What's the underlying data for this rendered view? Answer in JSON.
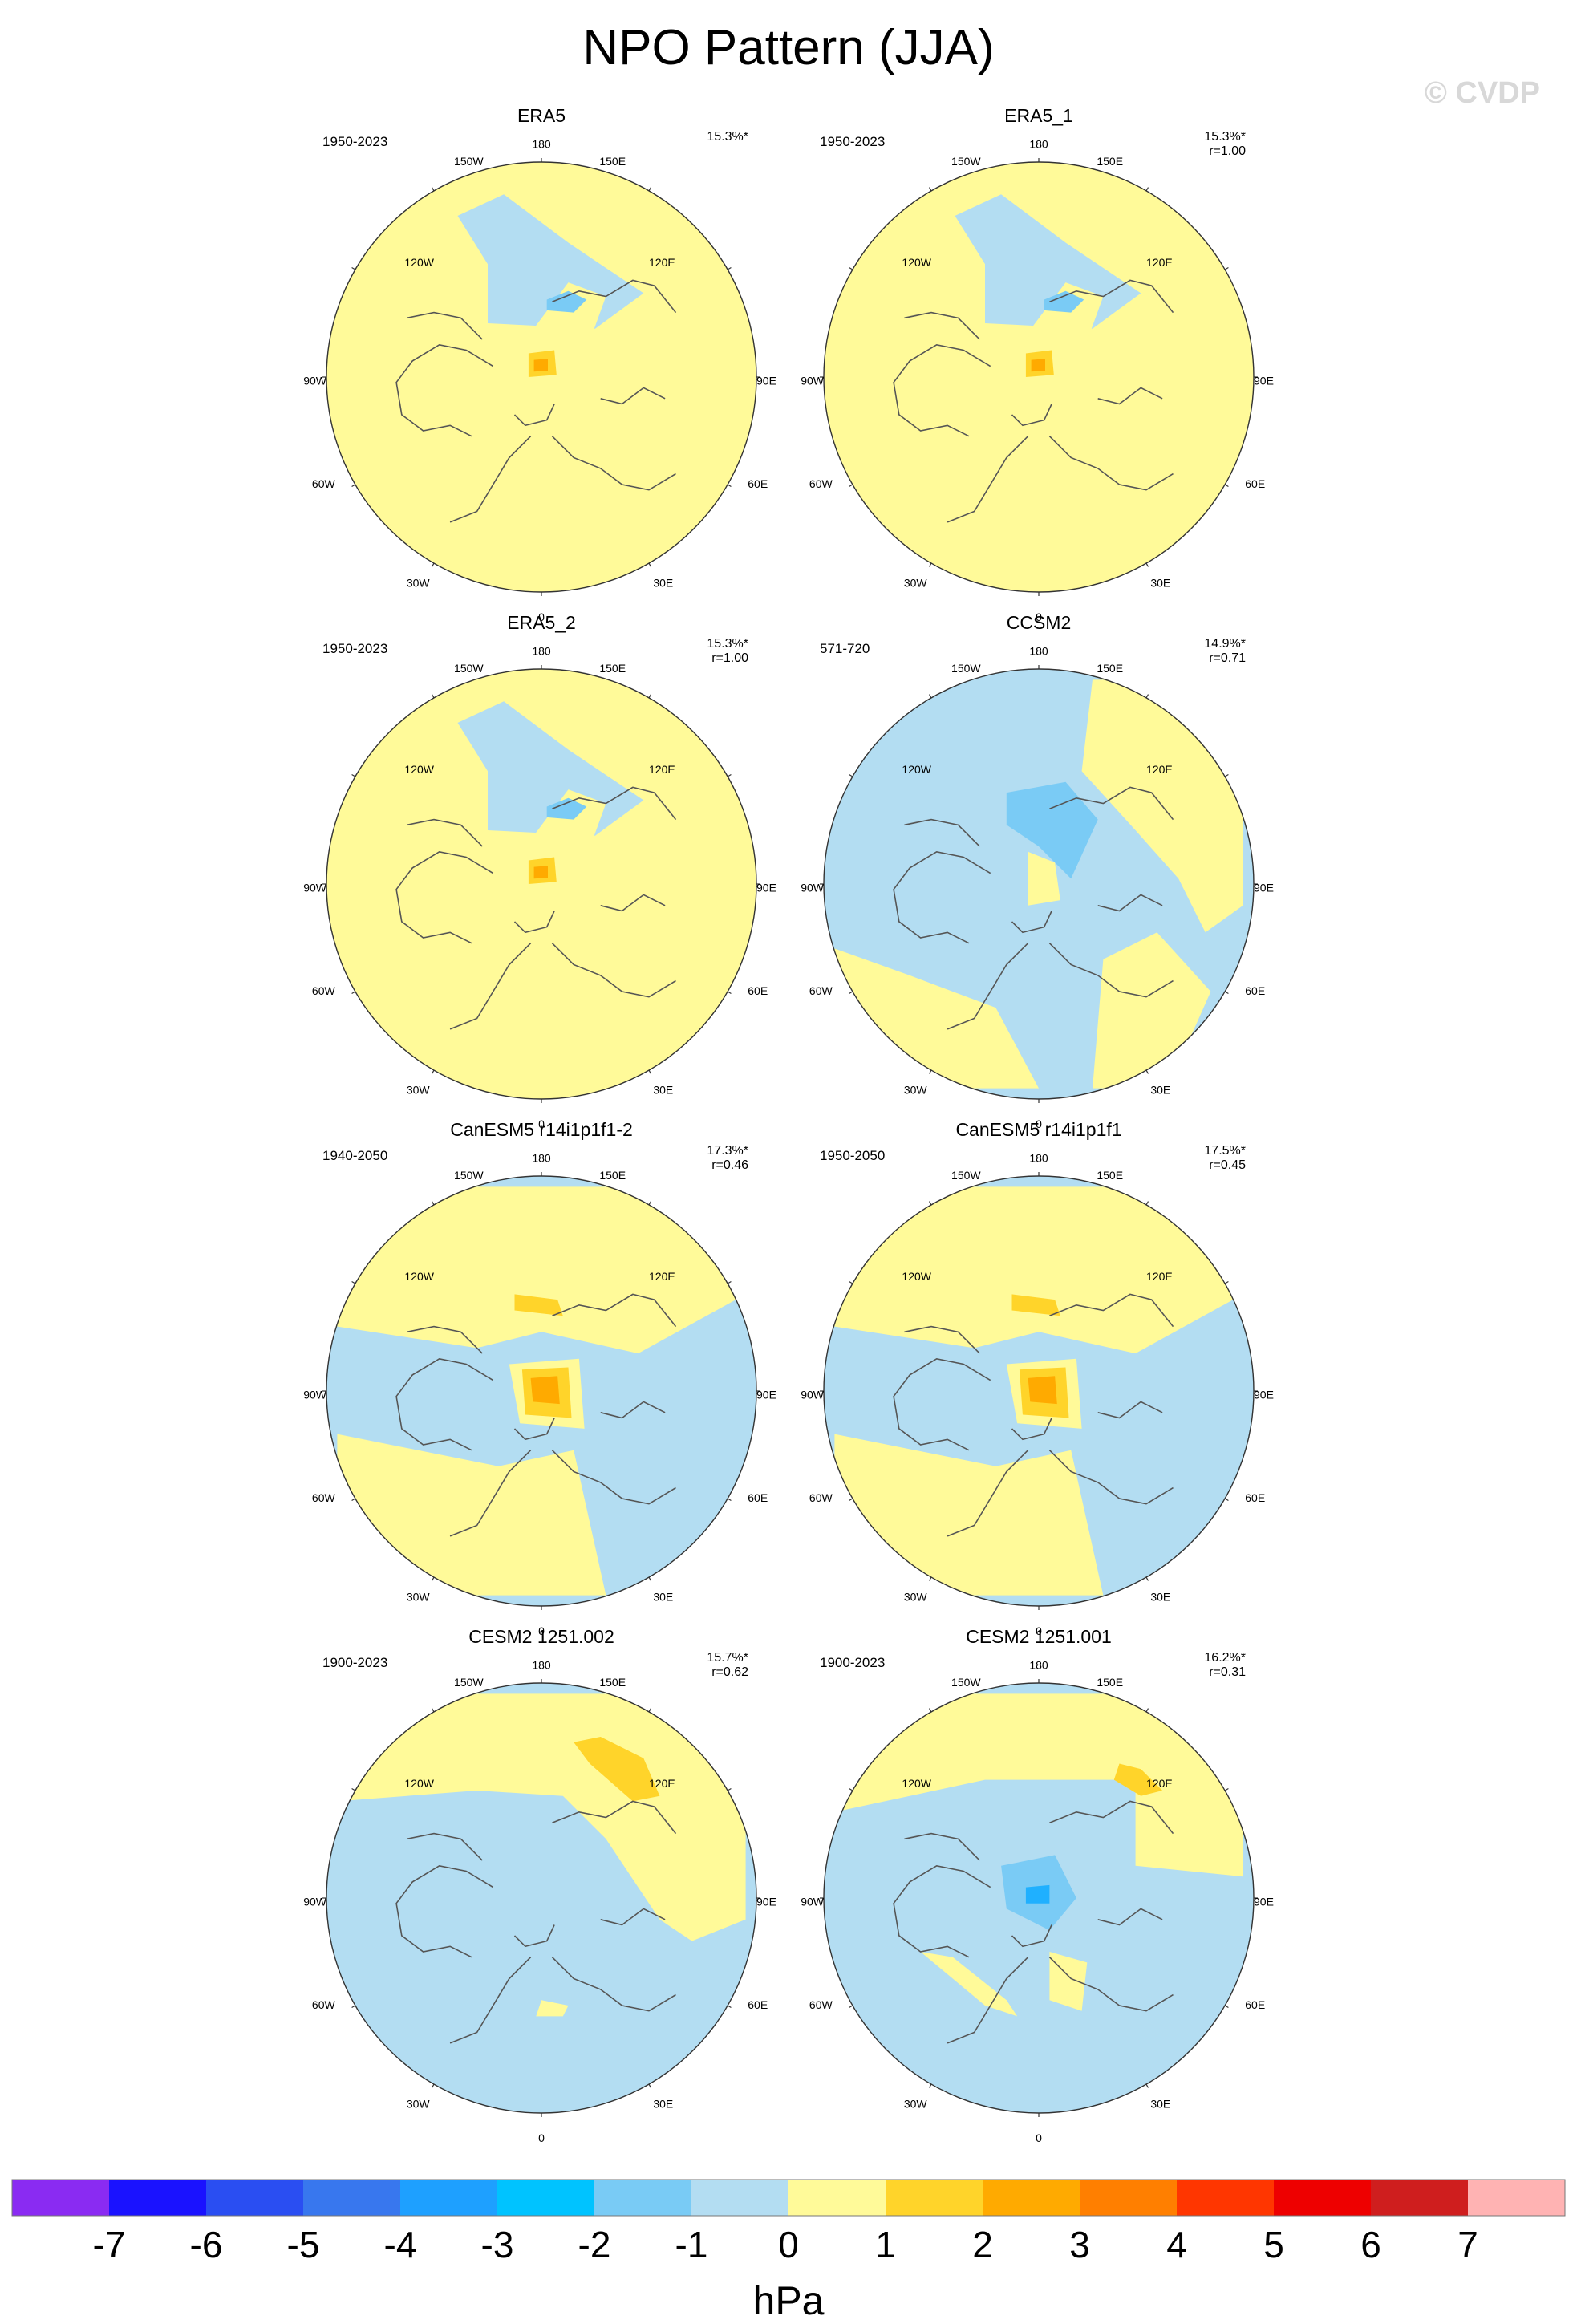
{
  "title": "NPO Pattern (JJA)",
  "watermark": "© CVDP",
  "colors": {
    "yellow": "#fffa99",
    "blue": "#b3ddf2",
    "gold": "#ffd42a",
    "orange": "#ffaa00",
    "midblue": "#7acbf5",
    "coast": "#555555"
  },
  "lon_labels": {
    "top": "180",
    "bottom": "0",
    "tl": "150W",
    "tr": "150E",
    "ul": "120W",
    "ur": "120E",
    "ml": "90W",
    "mr": "90E",
    "ll": "60W",
    "lr": "60E",
    "bl": "30W",
    "br": "30E"
  },
  "panels": [
    {
      "title": "ERA5",
      "years": "1950-2023",
      "pct": "15.3%*",
      "r": "",
      "base": "yellow",
      "blobs": [
        {
          "fill": "blue",
          "pts": [
            [
              0.25,
              1.25
            ],
            [
              0.95,
              0.78
            ],
            [
              0.5,
              0.45
            ],
            [
              -0.5,
              0.5
            ],
            [
              -0.5,
              1.05
            ],
            [
              -0.78,
              1.5
            ],
            [
              -0.35,
              1.7
            ]
          ]
        },
        {
          "fill": "yellow",
          "pts": [
            [
              -0.2,
              0.12
            ],
            [
              0.4,
              0.2
            ],
            [
              0.6,
              0.75
            ],
            [
              0.25,
              0.88
            ],
            [
              -0.05,
              0.48
            ]
          ]
        },
        {
          "fill": "midblue",
          "pts": [
            [
              0.05,
              0.62
            ],
            [
              0.3,
              0.6
            ],
            [
              0.42,
              0.72
            ],
            [
              0.25,
              0.8
            ],
            [
              0.05,
              0.72
            ]
          ]
        },
        {
          "fill": "gold",
          "pts": [
            [
              -0.12,
              0.22
            ],
            [
              0.12,
              0.25
            ],
            [
              0.14,
              0.02
            ],
            [
              -0.12,
              0.0
            ]
          ]
        },
        {
          "fill": "orange",
          "pts": [
            [
              -0.07,
              0.16
            ],
            [
              0.06,
              0.17
            ],
            [
              0.06,
              0.06
            ],
            [
              -0.07,
              0.05
            ]
          ]
        }
      ]
    },
    {
      "title": "ERA5_1",
      "years": "1950-2023",
      "pct": "15.3%*",
      "r": "r=1.00",
      "base": "yellow",
      "blobs": [
        {
          "fill": "blue",
          "pts": [
            [
              0.25,
              1.25
            ],
            [
              0.95,
              0.78
            ],
            [
              0.5,
              0.45
            ],
            [
              -0.5,
              0.5
            ],
            [
              -0.5,
              1.05
            ],
            [
              -0.78,
              1.5
            ],
            [
              -0.35,
              1.7
            ]
          ]
        },
        {
          "fill": "yellow",
          "pts": [
            [
              -0.2,
              0.12
            ],
            [
              0.4,
              0.2
            ],
            [
              0.6,
              0.75
            ],
            [
              0.25,
              0.88
            ],
            [
              -0.05,
              0.48
            ]
          ]
        },
        {
          "fill": "midblue",
          "pts": [
            [
              0.05,
              0.62
            ],
            [
              0.3,
              0.6
            ],
            [
              0.42,
              0.72
            ],
            [
              0.25,
              0.8
            ],
            [
              0.05,
              0.72
            ]
          ]
        },
        {
          "fill": "gold",
          "pts": [
            [
              -0.12,
              0.22
            ],
            [
              0.12,
              0.25
            ],
            [
              0.14,
              0.02
            ],
            [
              -0.12,
              0.0
            ]
          ]
        },
        {
          "fill": "orange",
          "pts": [
            [
              -0.07,
              0.16
            ],
            [
              0.06,
              0.17
            ],
            [
              0.06,
              0.06
            ],
            [
              -0.07,
              0.05
            ]
          ]
        }
      ]
    },
    {
      "title": "ERA5_2",
      "years": "1950-2023",
      "pct": "15.3%*",
      "r": "r=1.00",
      "base": "yellow",
      "blobs": [
        {
          "fill": "blue",
          "pts": [
            [
              0.25,
              1.25
            ],
            [
              0.95,
              0.78
            ],
            [
              0.5,
              0.45
            ],
            [
              -0.5,
              0.5
            ],
            [
              -0.5,
              1.05
            ],
            [
              -0.78,
              1.5
            ],
            [
              -0.35,
              1.7
            ]
          ]
        },
        {
          "fill": "yellow",
          "pts": [
            [
              -0.2,
              0.12
            ],
            [
              0.4,
              0.2
            ],
            [
              0.6,
              0.75
            ],
            [
              0.25,
              0.88
            ],
            [
              -0.05,
              0.48
            ]
          ]
        },
        {
          "fill": "midblue",
          "pts": [
            [
              0.05,
              0.62
            ],
            [
              0.3,
              0.6
            ],
            [
              0.42,
              0.72
            ],
            [
              0.25,
              0.8
            ],
            [
              0.05,
              0.72
            ]
          ]
        },
        {
          "fill": "gold",
          "pts": [
            [
              -0.12,
              0.22
            ],
            [
              0.12,
              0.25
            ],
            [
              0.14,
              0.02
            ],
            [
              -0.12,
              0.0
            ]
          ]
        },
        {
          "fill": "orange",
          "pts": [
            [
              -0.07,
              0.16
            ],
            [
              0.06,
              0.17
            ],
            [
              0.06,
              0.06
            ],
            [
              -0.07,
              0.05
            ]
          ]
        }
      ]
    },
    {
      "title": "CCSM2",
      "years": "571-720",
      "pct": "14.9%*",
      "r": "r=0.71",
      "base": "blue",
      "blobs": [
        {
          "fill": "yellow",
          "pts": [
            [
              0.4,
              1.05
            ],
            [
              0.9,
              0.5
            ],
            [
              1.3,
              0.05
            ],
            [
              1.55,
              -0.45
            ],
            [
              1.9,
              -0.2
            ],
            [
              1.9,
              1.9
            ],
            [
              0.5,
              1.9
            ]
          ]
        },
        {
          "fill": "yellow",
          "pts": [
            [
              -1.2,
              -0.85
            ],
            [
              -0.4,
              -1.15
            ],
            [
              0.0,
              -1.9
            ],
            [
              -1.9,
              -1.9
            ],
            [
              -1.9,
              -0.6
            ]
          ]
        },
        {
          "fill": "yellow",
          "pts": [
            [
              0.6,
              -0.7
            ],
            [
              1.1,
              -0.45
            ],
            [
              1.6,
              -1.0
            ],
            [
              1.2,
              -1.9
            ],
            [
              0.5,
              -1.9
            ]
          ]
        },
        {
          "fill": "yellow",
          "pts": [
            [
              -0.1,
              0.3
            ],
            [
              0.15,
              0.2
            ],
            [
              0.2,
              -0.15
            ],
            [
              -0.1,
              -0.2
            ]
          ]
        },
        {
          "fill": "midblue",
          "pts": [
            [
              -0.3,
              0.85
            ],
            [
              0.25,
              0.95
            ],
            [
              0.55,
              0.6
            ],
            [
              0.3,
              0.05
            ],
            [
              0.0,
              0.35
            ],
            [
              -0.3,
              0.55
            ]
          ]
        }
      ]
    },
    {
      "title": "CanESM5 r14i1p1f1-2",
      "years": "1940-2050",
      "pct": "17.3%*",
      "r": "r=0.46",
      "base": "blue",
      "blobs": [
        {
          "fill": "yellow",
          "pts": [
            [
              -1.9,
              1.9
            ],
            [
              1.9,
              1.9
            ],
            [
              1.9,
              0.9
            ],
            [
              0.9,
              0.35
            ],
            [
              0.0,
              0.55
            ],
            [
              -0.6,
              0.4
            ],
            [
              -1.9,
              0.6
            ]
          ]
        },
        {
          "fill": "yellow",
          "pts": [
            [
              -1.9,
              -0.4
            ],
            [
              -0.4,
              -0.7
            ],
            [
              0.3,
              -0.55
            ],
            [
              0.6,
              -1.9
            ],
            [
              -1.9,
              -1.9
            ]
          ]
        },
        {
          "fill": "yellow",
          "pts": [
            [
              -0.3,
              0.25
            ],
            [
              0.35,
              0.3
            ],
            [
              0.4,
              -0.35
            ],
            [
              -0.2,
              -0.3
            ]
          ]
        },
        {
          "fill": "gold",
          "pts": [
            [
              -0.25,
              0.9
            ],
            [
              0.15,
              0.85
            ],
            [
              0.2,
              0.7
            ],
            [
              -0.25,
              0.75
            ]
          ]
        },
        {
          "fill": "gold",
          "pts": [
            [
              -0.18,
              0.2
            ],
            [
              0.25,
              0.22
            ],
            [
              0.28,
              -0.25
            ],
            [
              -0.15,
              -0.22
            ]
          ]
        },
        {
          "fill": "orange",
          "pts": [
            [
              -0.1,
              0.12
            ],
            [
              0.15,
              0.14
            ],
            [
              0.17,
              -0.12
            ],
            [
              -0.08,
              -0.1
            ]
          ]
        }
      ]
    },
    {
      "title": "CanESM5 r14i1p1f1",
      "years": "1950-2050",
      "pct": "17.5%*",
      "r": "r=0.45",
      "base": "blue",
      "blobs": [
        {
          "fill": "yellow",
          "pts": [
            [
              -1.9,
              1.9
            ],
            [
              1.9,
              1.9
            ],
            [
              1.9,
              0.9
            ],
            [
              0.9,
              0.35
            ],
            [
              0.0,
              0.55
            ],
            [
              -0.6,
              0.4
            ],
            [
              -1.9,
              0.6
            ]
          ]
        },
        {
          "fill": "yellow",
          "pts": [
            [
              -1.9,
              -0.4
            ],
            [
              -0.4,
              -0.7
            ],
            [
              0.3,
              -0.55
            ],
            [
              0.6,
              -1.9
            ],
            [
              -1.9,
              -1.9
            ]
          ]
        },
        {
          "fill": "yellow",
          "pts": [
            [
              -0.3,
              0.25
            ],
            [
              0.35,
              0.3
            ],
            [
              0.4,
              -0.35
            ],
            [
              -0.2,
              -0.3
            ]
          ]
        },
        {
          "fill": "gold",
          "pts": [
            [
              -0.25,
              0.9
            ],
            [
              0.15,
              0.85
            ],
            [
              0.2,
              0.7
            ],
            [
              -0.25,
              0.75
            ]
          ]
        },
        {
          "fill": "gold",
          "pts": [
            [
              -0.18,
              0.2
            ],
            [
              0.25,
              0.22
            ],
            [
              0.28,
              -0.25
            ],
            [
              -0.15,
              -0.22
            ]
          ]
        },
        {
          "fill": "orange",
          "pts": [
            [
              -0.1,
              0.12
            ],
            [
              0.15,
              0.14
            ],
            [
              0.17,
              -0.12
            ],
            [
              -0.08,
              -0.1
            ]
          ]
        }
      ]
    },
    {
      "title": "CESM2 1251.002",
      "years": "1900-2023",
      "pct": "15.7%*",
      "r": "r=0.62",
      "base": "blue",
      "blobs": [
        {
          "fill": "yellow",
          "pts": [
            [
              -1.9,
              1.9
            ],
            [
              1.9,
              1.9
            ],
            [
              1.9,
              -0.2
            ],
            [
              1.4,
              -0.4
            ],
            [
              1.1,
              -0.2
            ],
            [
              0.6,
              0.55
            ],
            [
              0.2,
              0.95
            ],
            [
              -0.6,
              1.0
            ],
            [
              -1.9,
              0.9
            ]
          ]
        },
        {
          "fill": "gold",
          "pts": [
            [
              0.3,
              1.45
            ],
            [
              0.55,
              1.5
            ],
            [
              0.95,
              1.3
            ],
            [
              1.1,
              0.95
            ],
            [
              0.85,
              0.9
            ],
            [
              0.45,
              1.25
            ]
          ]
        },
        {
          "fill": "yellow",
          "pts": [
            [
              0.0,
              -0.95
            ],
            [
              0.25,
              -1.0
            ],
            [
              0.2,
              -1.1
            ],
            [
              -0.05,
              -1.1
            ]
          ]
        }
      ]
    },
    {
      "title": "CESM2 1251.001",
      "years": "1900-2023",
      "pct": "16.2%*",
      "r": "r=0.31",
      "base": "blue",
      "blobs": [
        {
          "fill": "yellow",
          "pts": [
            [
              -1.9,
              1.9
            ],
            [
              1.9,
              1.9
            ],
            [
              1.9,
              0.2
            ],
            [
              0.9,
              0.3
            ],
            [
              0.9,
              1.1
            ],
            [
              -0.5,
              1.1
            ],
            [
              -1.9,
              0.8
            ]
          ]
        },
        {
          "fill": "gold",
          "pts": [
            [
              0.75,
              1.25
            ],
            [
              0.95,
              1.2
            ],
            [
              1.15,
              1.0
            ],
            [
              0.95,
              0.95
            ],
            [
              0.7,
              1.1
            ]
          ]
        },
        {
          "fill": "yellow",
          "pts": [
            [
              -1.1,
              -0.5
            ],
            [
              -0.5,
              -1.0
            ],
            [
              -0.2,
              -1.1
            ],
            [
              -0.3,
              -0.95
            ],
            [
              -0.8,
              -0.55
            ]
          ]
        },
        {
          "fill": "yellow",
          "pts": [
            [
              0.1,
              -0.5
            ],
            [
              0.45,
              -0.6
            ],
            [
              0.4,
              -1.05
            ],
            [
              0.1,
              -0.95
            ]
          ]
        },
        {
          "fill": "midblue",
          "pts": [
            [
              -0.35,
              0.3
            ],
            [
              0.15,
              0.4
            ],
            [
              0.35,
              0.0
            ],
            [
              0.1,
              -0.3
            ],
            [
              -0.3,
              -0.1
            ]
          ]
        },
        {
          "fill": "sky",
          "pts": [
            [
              -0.12,
              0.1
            ],
            [
              0.1,
              0.12
            ],
            [
              0.1,
              -0.05
            ],
            [
              -0.12,
              -0.05
            ]
          ]
        }
      ]
    }
  ],
  "colorbar": {
    "colors": [
      "#8a2bf2",
      "#1a12ff",
      "#2a4ef2",
      "#3877ee",
      "#1ea0ff",
      "#00c3ff",
      "#79cbf5",
      "#b3ddf2",
      "#fffa99",
      "#ffd42a",
      "#ffaa00",
      "#ff7f00",
      "#ff3600",
      "#ee0000",
      "#cf1e1e",
      "#ffb3b3"
    ],
    "labels": [
      "-7",
      "-6",
      "-5",
      "-4",
      "-3",
      "-2",
      "-1",
      "0",
      "1",
      "2",
      "3",
      "4",
      "5",
      "6",
      "7"
    ],
    "unit": "hPa"
  }
}
